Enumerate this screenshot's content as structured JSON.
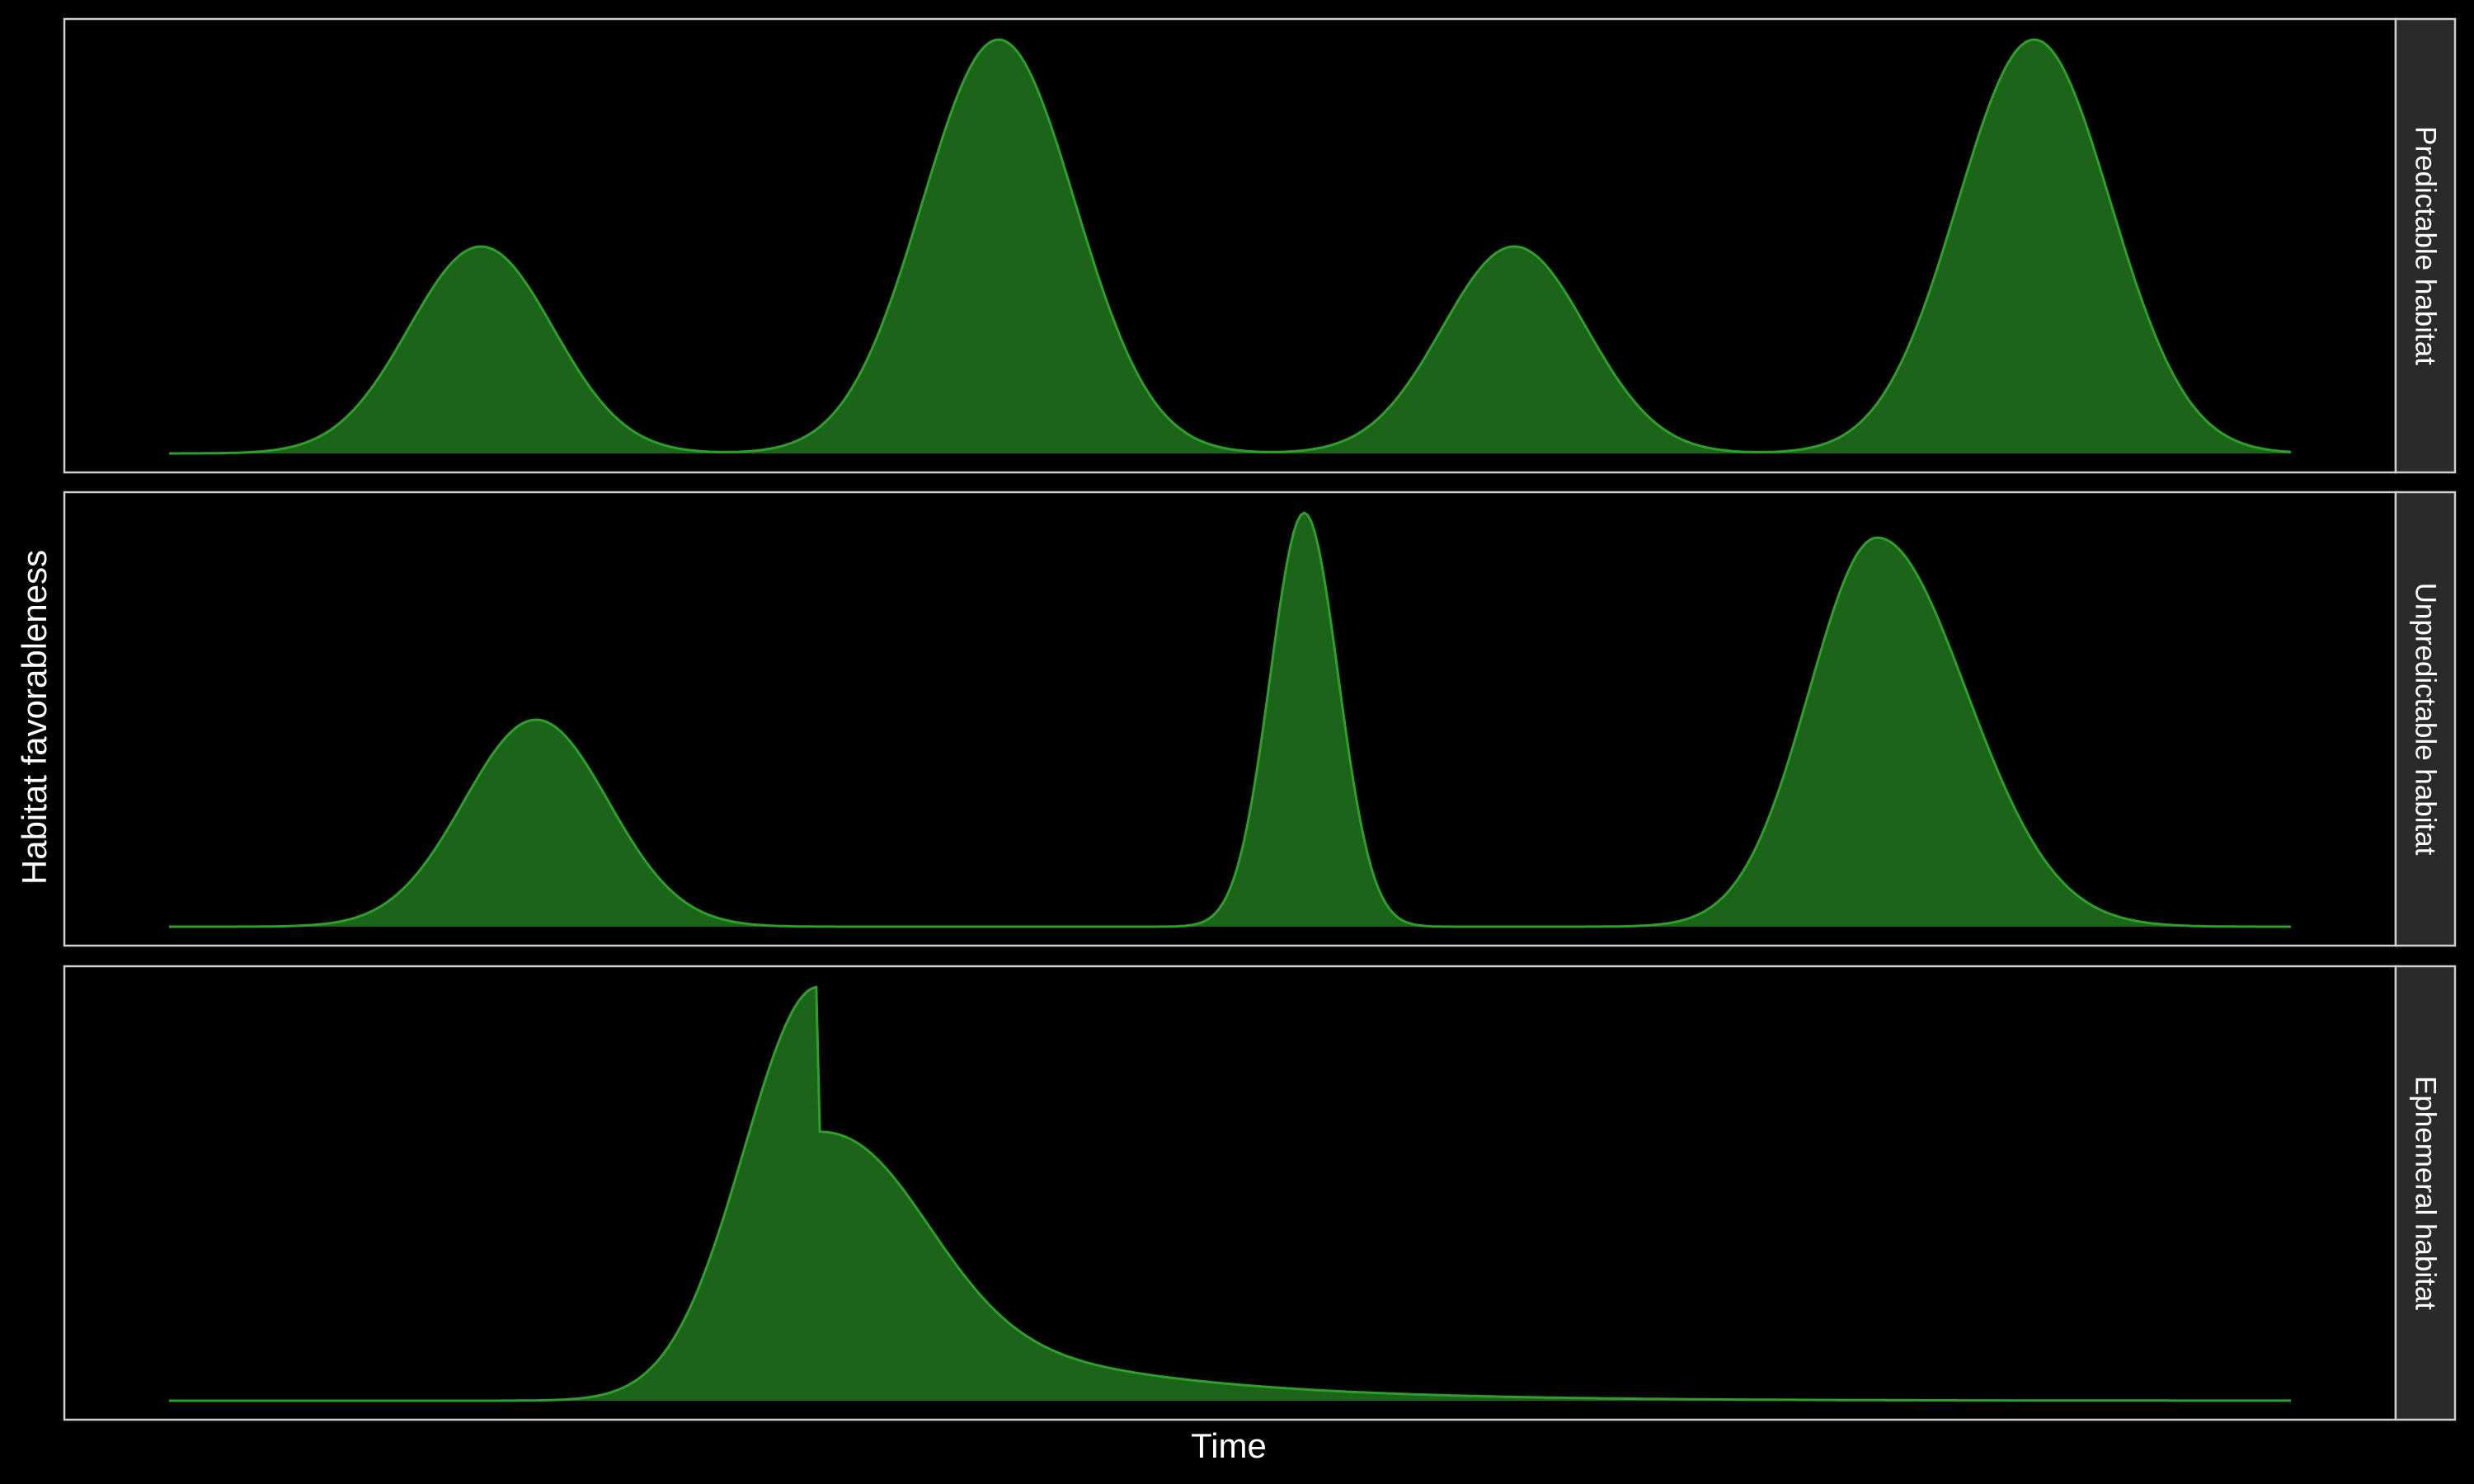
{
  "colors": {
    "background": "#000000",
    "fill": "#1b6419",
    "line": "#2ea02a",
    "panel_border": "#cfcfcf",
    "strip_bg": "#2a2a2a",
    "text": "#ffffff"
  },
  "chart_data": {
    "type": "area",
    "xlabel": "Time",
    "ylabel": "Habitat favorableness",
    "xlim": [
      0,
      100
    ],
    "ylim": [
      0,
      1
    ],
    "axis_ticks": "none",
    "grid": false,
    "legend": "none",
    "panels": [
      {
        "label": "Predictable habitat",
        "peaks": [
          {
            "center": 14.7,
            "height": 0.5,
            "width": 3.4
          },
          {
            "center": 39.1,
            "height": 1.0,
            "width": 3.6
          },
          {
            "center": 63.4,
            "height": 0.5,
            "width": 3.4
          },
          {
            "center": 87.9,
            "height": 1.0,
            "width": 3.6
          }
        ]
      },
      {
        "label": "Unpredictable habitat",
        "peaks": [
          {
            "center": 17.3,
            "height": 0.5,
            "width": 3.4
          },
          {
            "center": 53.5,
            "height": 1.0,
            "width": 1.6
          },
          {
            "center": 80.5,
            "height": 0.94,
            "width": 3.2,
            "right_width": 4.2
          }
        ]
      },
      {
        "label": "Ephemeral habitat",
        "peaks": [
          {
            "center": 30.6,
            "height": 1.0,
            "width": 3.5,
            "right_width": 4.2,
            "tail_height": 0.35,
            "tail_decay": 9.0
          }
        ]
      }
    ]
  }
}
